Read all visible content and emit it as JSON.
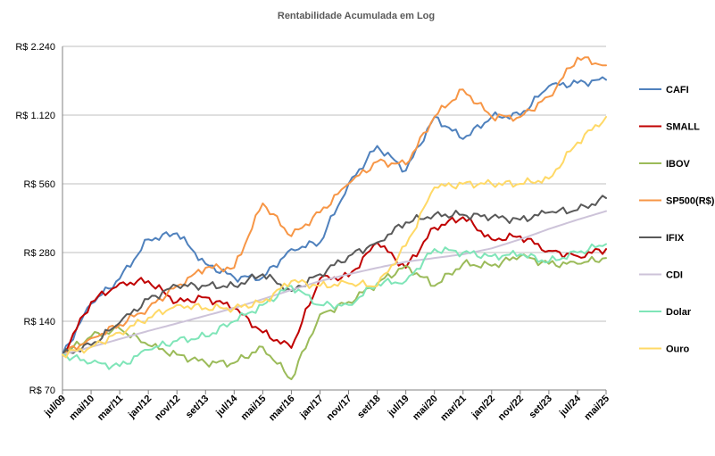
{
  "chart_data": {
    "type": "line",
    "title": "Rentabilidade Acumulada em Log",
    "xlabel": "",
    "ylabel": "",
    "y_scale": "log2",
    "ylim": [
      70,
      2240
    ],
    "y_ticks": [
      "R$ 70",
      "R$ 140",
      "R$ 280",
      "R$ 560",
      "R$ 1.120",
      "R$ 2.240"
    ],
    "y_tick_values": [
      70,
      140,
      280,
      560,
      1120,
      2240
    ],
    "x_ticks": [
      "jul/09",
      "mai/10",
      "mar/11",
      "jan/12",
      "nov/12",
      "set/13",
      "jul/14",
      "mai/15",
      "mar/16",
      "jan/17",
      "nov/17",
      "set/18",
      "jul/19",
      "mai/20",
      "mar/21",
      "jan/22",
      "nov/22",
      "set/23",
      "jul/24",
      "mai/25"
    ],
    "grid": "horizontal",
    "legend_position": "right",
    "series": [
      {
        "name": "CAFI",
        "color": "#4f81bd",
        "values": [
          100,
          167,
          215,
          320,
          340,
          250,
          218,
          218,
          290,
          310,
          560,
          820,
          640,
          1100,
          880,
          1100,
          1120,
          1500,
          1550,
          1600
        ]
      },
      {
        "name": "SMALL",
        "color": "#c00000",
        "values": [
          100,
          170,
          205,
          210,
          170,
          178,
          160,
          125,
          107,
          215,
          220,
          310,
          240,
          360,
          400,
          320,
          330,
          285,
          270,
          290
        ]
      },
      {
        "name": "IBOV",
        "color": "#9bbb59",
        "values": [
          100,
          120,
          130,
          110,
          100,
          92,
          92,
          108,
          78,
          150,
          170,
          205,
          245,
          200,
          250,
          245,
          270,
          250,
          250,
          265
        ]
      },
      {
        "name": "SP500(R$)",
        "color": "#f79646",
        "values": [
          100,
          118,
          135,
          160,
          200,
          240,
          240,
          460,
          330,
          420,
          560,
          700,
          680,
          1100,
          1450,
          1100,
          1100,
          1350,
          2000,
          1850
        ]
      },
      {
        "name": "IFIX",
        "color": "#595959",
        "values": [
          100,
          110,
          138,
          175,
          200,
          200,
          200,
          225,
          190,
          225,
          270,
          310,
          380,
          410,
          410,
          400,
          390,
          420,
          430,
          485
        ]
      },
      {
        "name": "CDI",
        "color": "#cdc3d9",
        "values": [
          100,
          108,
          117,
          127,
          137,
          148,
          160,
          175,
          192,
          210,
          225,
          240,
          255,
          265,
          275,
          292,
          320,
          355,
          390,
          425
        ]
      },
      {
        "name": "Dolar",
        "color": "#7fe5b8",
        "values": [
          100,
          92,
          89,
          105,
          115,
          120,
          140,
          165,
          200,
          165,
          165,
          205,
          210,
          290,
          280,
          270,
          275,
          255,
          280,
          305
        ]
      },
      {
        "name": "Ouro",
        "color": "#ffd966",
        "values": [
          100,
          108,
          125,
          145,
          165,
          160,
          160,
          170,
          210,
          200,
          205,
          200,
          300,
          540,
          560,
          560,
          560,
          590,
          850,
          1100
        ]
      }
    ]
  }
}
